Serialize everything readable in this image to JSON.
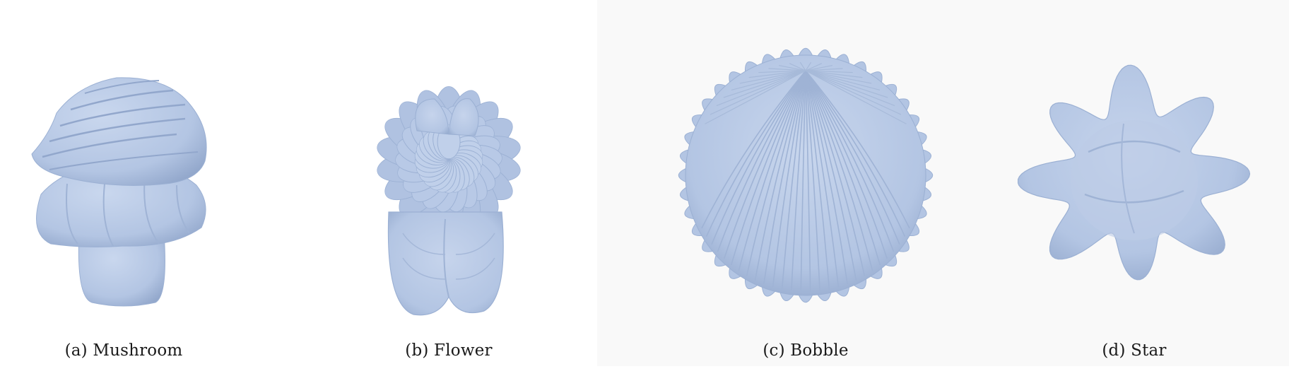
{
  "figure": {
    "panels": [
      {
        "caption": "(a) Mushroom",
        "shape": "mushroom",
        "color": "#b3c5e3"
      },
      {
        "caption": "(b) Flower",
        "shape": "flower",
        "color": "#b3c5e3"
      },
      {
        "caption": "(c) Bobble",
        "shape": "bobble",
        "color": "#b3c5e3"
      },
      {
        "caption": "(d) Star",
        "shape": "star",
        "color": "#b3c5e3"
      }
    ]
  }
}
